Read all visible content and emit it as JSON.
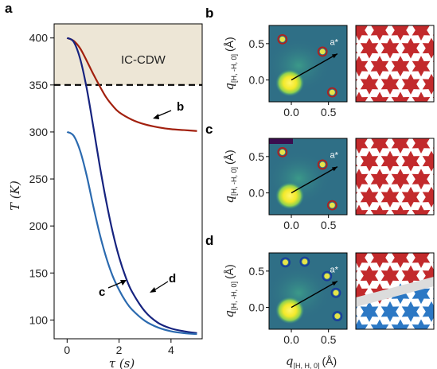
{
  "panels": {
    "a": "a",
    "b": "b",
    "c": "c",
    "d": "d"
  },
  "chart_data": [
    {
      "type": "line",
      "panel": "a",
      "xlabel": "τ (s)",
      "ylabel": "T (K)",
      "xlim": [
        -0.5,
        5.2
      ],
      "ylim": [
        80,
        415
      ],
      "xticks": [
        "0",
        "2",
        "4"
      ],
      "yticks": [
        "100",
        "150",
        "200",
        "250",
        "300",
        "350",
        "400"
      ],
      "region_label": "IC-CDW",
      "threshold_K": 350,
      "series": [
        {
          "name": "b",
          "color": "#a2200e",
          "x": [
            0,
            0.25,
            0.5,
            0.75,
            1.0,
            1.25,
            1.5,
            1.75,
            2.0,
            2.5,
            3.0,
            3.5,
            4.0,
            4.5,
            5.0
          ],
          "y": [
            400,
            397,
            389,
            376,
            362,
            349,
            337,
            328,
            321,
            313,
            308,
            305,
            303,
            302,
            301
          ]
        },
        {
          "name": "d",
          "color": "#16237f",
          "x": [
            0,
            0.25,
            0.5,
            0.75,
            1.0,
            1.25,
            1.5,
            1.75,
            2.0,
            2.25,
            2.5,
            3.0,
            3.5,
            4.0,
            4.5,
            5.0
          ],
          "y": [
            400,
            396,
            378,
            347,
            307,
            265,
            227,
            194,
            167,
            146,
            130,
            109,
            97,
            91,
            88,
            86
          ]
        },
        {
          "name": "c",
          "color": "#2b6aaf",
          "x": [
            0,
            0.25,
            0.5,
            0.75,
            1.0,
            1.25,
            1.5,
            1.75,
            2.0,
            2.25,
            2.5,
            3.0,
            3.5,
            4.0,
            4.5,
            5.0
          ],
          "y": [
            300,
            296,
            280,
            254,
            222,
            192,
            167,
            147,
            132,
            120,
            111,
            99,
            92,
            88,
            86,
            85
          ]
        }
      ],
      "curve_labels": [
        "b",
        "c",
        "d"
      ]
    },
    {
      "type": "heatmap",
      "panel": "b",
      "xlabel": "q",
      "xlabel_sub": "[H, H, 0]",
      "xlabel_unit": "(Å)",
      "ylabel": "q",
      "ylabel_sub": "[H, -H, 0]",
      "ylabel_unit": "(Å)",
      "xlim": [
        -0.3,
        0.75
      ],
      "ylim": [
        -0.3,
        0.75
      ],
      "xticks": [
        "0.0",
        "0.5"
      ],
      "yticks": [
        "0.0",
        "0.5"
      ],
      "vector_label": "a*",
      "peaks": [
        [
          -0.12,
          0.56
        ],
        [
          0.42,
          0.39
        ],
        [
          0.55,
          -0.17
        ]
      ],
      "peak_ring_color": "#b0201c",
      "star_color": "#c22a2c",
      "pattern": "single-domain"
    },
    {
      "type": "heatmap",
      "panel": "c",
      "xlabel": "q",
      "xlabel_sub": "[H, H, 0]",
      "xlabel_unit": "(Å)",
      "ylabel": "q",
      "ylabel_sub": "[H, -H, 0]",
      "ylabel_unit": "(Å)",
      "xlim": [
        -0.3,
        0.75
      ],
      "ylim": [
        -0.3,
        0.75
      ],
      "xticks": [
        "0.0",
        "0.5"
      ],
      "yticks": [
        "0.0",
        "0.5"
      ],
      "vector_label": "a*",
      "peaks": [
        [
          -0.12,
          0.56
        ],
        [
          0.42,
          0.39
        ],
        [
          0.55,
          -0.17
        ]
      ],
      "peak_ring_color": "#b0201c",
      "star_color": "#c22a2c",
      "pattern": "single-domain"
    },
    {
      "type": "heatmap",
      "panel": "d",
      "xlabel": "q",
      "xlabel_sub": "[H, H, 0]",
      "xlabel_unit": "(Å)",
      "ylabel": "q",
      "ylabel_sub": "[H, -H, 0]",
      "ylabel_unit": "(Å)",
      "xlim": [
        -0.3,
        0.75
      ],
      "ylim": [
        -0.3,
        0.75
      ],
      "xticks": [
        "0.0",
        "0.5"
      ],
      "yticks": [
        "0.0",
        "0.5"
      ],
      "vector_label": "a*",
      "peaks": [
        [
          -0.08,
          0.62
        ],
        [
          0.18,
          0.63
        ],
        [
          0.48,
          0.43
        ],
        [
          0.6,
          0.2
        ],
        [
          0.62,
          -0.12
        ]
      ],
      "peak_ring_color": "#1a3b9c",
      "star_color": "#c22a2c",
      "star_color_2": "#2c78c4",
      "pattern": "two-domain"
    }
  ],
  "colors": {
    "cdw_shade": "#ede6d6",
    "heat_bg": "#2f6f86",
    "heat_hot": "#f3ef2a"
  }
}
